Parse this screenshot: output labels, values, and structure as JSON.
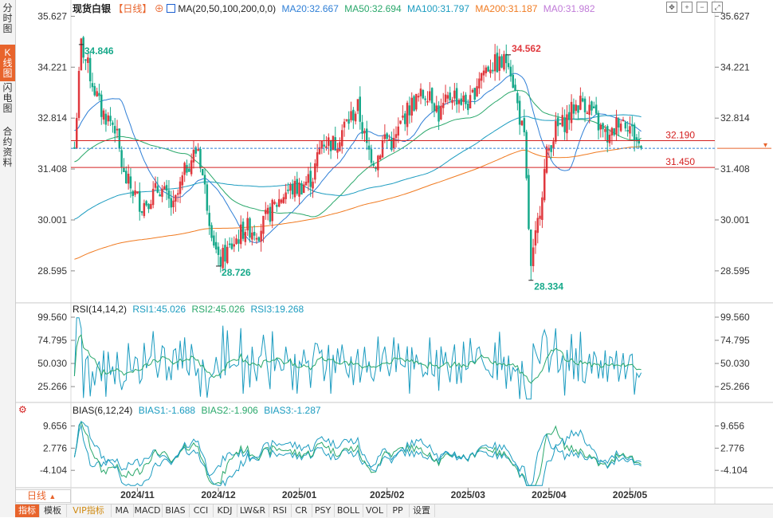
{
  "left_tabs": [
    "分时图",
    "K线图",
    "闪电图",
    "合约资料"
  ],
  "left_tab_active": 1,
  "header": {
    "instrument": "现货白银",
    "period": "【日线】",
    "ma_label": "MA(20,50,100,200,0,0)",
    "ma20": "MA20:32.667",
    "ma50": "MA50:32.694",
    "ma100": "MA100:31.797",
    "ma200": "MA200:31.187",
    "ma0": "MA0:31.982"
  },
  "colors": {
    "up": "#e0393e",
    "down": "#17a98a",
    "ma20": "#2f7fd6",
    "ma50": "#2aa86b",
    "ma100": "#1c9cc0",
    "ma200": "#f07a20",
    "ma0": "#c07ad8",
    "hline": "#d42020",
    "accent": "#e8642c"
  },
  "indicators": {
    "rsi": {
      "label": "RSI(14,14,2)",
      "v1": "RSI1:45.026",
      "v2": "RSI2:45.026",
      "v3": "RSI3:19.268",
      "ticks": [
        "99.560",
        "74.795",
        "50.030",
        "25.266"
      ]
    },
    "bias": {
      "label": "BIAS(6,12,24)",
      "v1": "BIAS1:-1.688",
      "v2": "BIAS2:-1.906",
      "v3": "BIAS3:-1.287",
      "ticks": [
        "9.656",
        "2.776",
        "-4.104"
      ]
    }
  },
  "bottom": {
    "period_button": "日线",
    "tabs": [
      "指标",
      "模板",
      "VIP指标",
      "MA",
      "MACD",
      "BIAS",
      "CCI",
      "KDJ",
      "LW&R",
      "RSI",
      "CR",
      "PSY",
      "BOLL",
      "VOL",
      "PP",
      "设置"
    ],
    "active": 0
  },
  "chart_data": {
    "type": "candlestick",
    "price_ticks": [
      "35.627",
      "34.221",
      "32.814",
      "31.408",
      "30.001",
      "28.595"
    ],
    "ylim": [
      27.8,
      35.9
    ],
    "x_labels": [
      "2024/11",
      "2024/12",
      "2025/01",
      "2025/02",
      "2025/03",
      "2025/04",
      "2025/05"
    ],
    "levels": [
      {
        "label": "32.190",
        "value": 32.19
      },
      {
        "label": "31.450",
        "value": 31.45
      }
    ],
    "last_price": 31.98,
    "annotations": [
      {
        "label": "34.846",
        "value": 34.846,
        "index": 3
      },
      {
        "label": "28.726",
        "value": 28.726,
        "index": 64
      },
      {
        "label": "34.562",
        "value": 34.562,
        "index": 193
      },
      {
        "label": "28.334",
        "value": 28.334,
        "index": 203
      }
    ],
    "anchors": [
      [
        0,
        32.0
      ],
      [
        3,
        34.85
      ],
      [
        8,
        33.8
      ],
      [
        12,
        33.0
      ],
      [
        18,
        32.6
      ],
      [
        22,
        31.2
      ],
      [
        30,
        30.4
      ],
      [
        38,
        30.9
      ],
      [
        44,
        30.3
      ],
      [
        50,
        31.5
      ],
      [
        55,
        32.0
      ],
      [
        60,
        30.1
      ],
      [
        64,
        28.8
      ],
      [
        70,
        29.3
      ],
      [
        76,
        29.8
      ],
      [
        82,
        29.7
      ],
      [
        88,
        30.3
      ],
      [
        94,
        30.8
      ],
      [
        100,
        30.9
      ],
      [
        106,
        31.2
      ],
      [
        110,
        32.2
      ],
      [
        116,
        32.1
      ],
      [
        120,
        32.6
      ],
      [
        126,
        33.1
      ],
      [
        130,
        32.0
      ],
      [
        134,
        31.6
      ],
      [
        138,
        32.3
      ],
      [
        142,
        32.1
      ],
      [
        146,
        32.8
      ],
      [
        150,
        33.2
      ],
      [
        154,
        33.4
      ],
      [
        158,
        33.6
      ],
      [
        162,
        32.9
      ],
      [
        168,
        33.5
      ],
      [
        172,
        33.3
      ],
      [
        176,
        33.2
      ],
      [
        180,
        34.0
      ],
      [
        185,
        34.3
      ],
      [
        190,
        34.3
      ],
      [
        193,
        34.5
      ],
      [
        196,
        33.5
      ],
      [
        200,
        32.2
      ],
      [
        203,
        28.6
      ],
      [
        206,
        29.9
      ],
      [
        210,
        31.8
      ],
      [
        214,
        32.5
      ],
      [
        218,
        32.7
      ],
      [
        222,
        33.1
      ],
      [
        226,
        33.3
      ],
      [
        230,
        33.0
      ],
      [
        234,
        32.5
      ],
      [
        238,
        32.2
      ],
      [
        242,
        32.8
      ],
      [
        246,
        32.7
      ],
      [
        250,
        32.2
      ],
      [
        252,
        31.98
      ]
    ]
  }
}
